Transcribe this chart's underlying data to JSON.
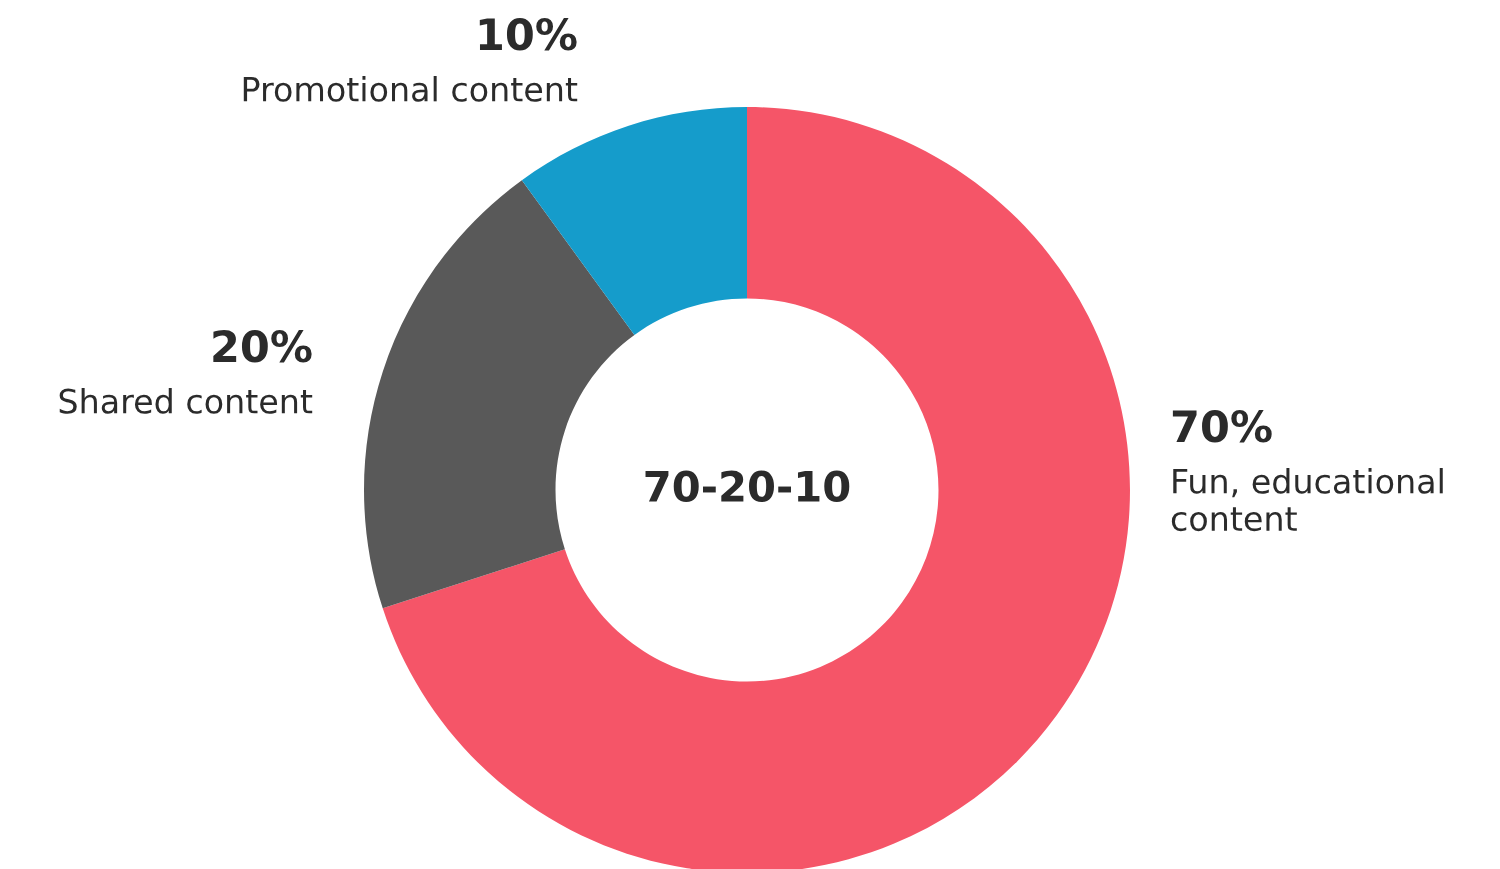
{
  "chart_data": {
    "type": "donut",
    "title": "70-20-10",
    "categories": [
      "Fun, educational content",
      "Shared content",
      "Promotional content"
    ],
    "values": [
      70,
      20,
      10
    ],
    "colors": [
      "#f55568",
      "#595959",
      "#159ccb"
    ],
    "value_labels": [
      "70%",
      "20%",
      "10%"
    ]
  }
}
